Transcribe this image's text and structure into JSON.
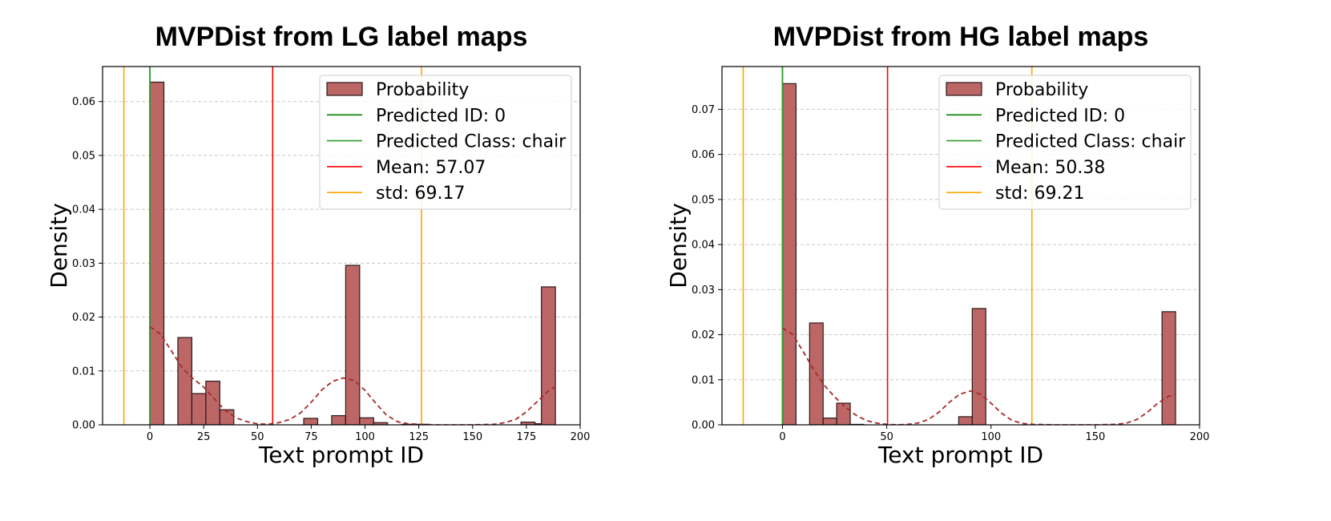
{
  "chart_data": [
    {
      "type": "bar",
      "title": "MVPDist from LG label maps",
      "xlabel": "Text prompt ID",
      "ylabel": "Density",
      "xlim": [
        -22,
        200
      ],
      "ylim": [
        0,
        0.0665
      ],
      "xticks": [
        0,
        25,
        50,
        75,
        100,
        125,
        150,
        175,
        200
      ],
      "yticks": [
        0.0,
        0.01,
        0.02,
        0.03,
        0.04,
        0.05,
        0.06
      ],
      "ytick_labels": [
        "0.00",
        "0.01",
        "0.02",
        "0.03",
        "0.04",
        "0.05",
        "0.06"
      ],
      "grid": "horizontal dashed",
      "legend_position": "top-right",
      "bin_width": 6.5,
      "bars": [
        {
          "x": 0,
          "value": 0.0636
        },
        {
          "x": 13,
          "value": 0.0162
        },
        {
          "x": 19.5,
          "value": 0.0058
        },
        {
          "x": 26,
          "value": 0.0081
        },
        {
          "x": 32.5,
          "value": 0.0028
        },
        {
          "x": 71.5,
          "value": 0.0012
        },
        {
          "x": 84.5,
          "value": 0.0017
        },
        {
          "x": 91,
          "value": 0.0296
        },
        {
          "x": 97.5,
          "value": 0.0013
        },
        {
          "x": 104,
          "value": 0.0004
        },
        {
          "x": 117,
          "value": 0.0001
        },
        {
          "x": 123.5,
          "value": 0.0001
        },
        {
          "x": 172.5,
          "value": 0.0005
        },
        {
          "x": 179,
          "value": 0.0002
        },
        {
          "x": 182,
          "value": 0.0256
        }
      ],
      "kde": {
        "x": [
          0,
          5,
          10,
          15,
          20,
          25,
          30,
          35,
          40,
          45,
          50,
          55,
          60,
          65,
          70,
          75,
          80,
          85,
          90,
          95,
          100,
          105,
          110,
          115,
          120,
          125,
          130,
          140,
          150,
          160,
          165,
          170,
          175,
          180,
          185,
          188
        ],
        "y": [
          0.0182,
          0.0168,
          0.0137,
          0.0106,
          0.0086,
          0.007,
          0.0048,
          0.0027,
          0.0013,
          0.0006,
          0.0002,
          0.0001,
          0.0004,
          0.001,
          0.0022,
          0.0042,
          0.0065,
          0.0081,
          0.0087,
          0.0082,
          0.0064,
          0.004,
          0.0018,
          0.0006,
          0.0002,
          0.0001,
          0.0,
          0.0,
          0.0,
          0.0001,
          0.0004,
          0.001,
          0.0024,
          0.0043,
          0.0062,
          0.007
        ]
      },
      "lines": [
        {
          "x": 0,
          "color": "#008000",
          "label": "Predicted ID: 0"
        },
        {
          "x": 0,
          "color": "#2ca02c",
          "label": "Predicted Class: chair"
        },
        {
          "x": 57.07,
          "color": "#ff0000",
          "label": "Mean: 57.07"
        },
        {
          "x": -12.1,
          "color": "#ffa500",
          "label": "std: 69.17"
        },
        {
          "x": 126.24,
          "color": "#ffa500",
          "label": null
        }
      ],
      "legend": [
        {
          "kind": "patch",
          "label": "Probability",
          "color": "#bc6666"
        },
        {
          "kind": "line",
          "label": "Predicted ID: 0",
          "color": "#008000"
        },
        {
          "kind": "line",
          "label": "Predicted Class: chair",
          "color": "#2ca02c"
        },
        {
          "kind": "line",
          "label": "Mean: 57.07",
          "color": "#ff0000"
        },
        {
          "kind": "line",
          "label": "std: 69.17",
          "color": "#ffa500"
        }
      ]
    },
    {
      "type": "bar",
      "title": "MVPDist from HG label maps",
      "xlabel": "Text prompt ID",
      "ylabel": "Density",
      "xlim": [
        -29,
        200
      ],
      "ylim": [
        0,
        0.0795
      ],
      "xticks": [
        0,
        50,
        100,
        150,
        200
      ],
      "yticks": [
        0.0,
        0.01,
        0.02,
        0.03,
        0.04,
        0.05,
        0.06,
        0.07
      ],
      "ytick_labels": [
        "0.00",
        "0.01",
        "0.02",
        "0.03",
        "0.04",
        "0.05",
        "0.06",
        "0.07"
      ],
      "grid": "horizontal dashed",
      "legend_position": "top-right",
      "bin_width": 6.5,
      "bars": [
        {
          "x": 0,
          "value": 0.0757
        },
        {
          "x": 13,
          "value": 0.0226
        },
        {
          "x": 19.5,
          "value": 0.0015
        },
        {
          "x": 26,
          "value": 0.0048
        },
        {
          "x": 32.5,
          "value": 0.0001
        },
        {
          "x": 84.5,
          "value": 0.0018
        },
        {
          "x": 91,
          "value": 0.0258
        },
        {
          "x": 182,
          "value": 0.0251
        }
      ],
      "kde": {
        "x": [
          0,
          5,
          10,
          15,
          20,
          25,
          30,
          35,
          40,
          45,
          50,
          55,
          60,
          65,
          70,
          75,
          80,
          85,
          90,
          95,
          100,
          105,
          110,
          115,
          120,
          130,
          140,
          150,
          160,
          165,
          170,
          175,
          180,
          185,
          188
        ],
        "y": [
          0.0215,
          0.02,
          0.0162,
          0.0122,
          0.0088,
          0.0062,
          0.004,
          0.0022,
          0.001,
          0.0004,
          0.0001,
          0.0,
          0.0001,
          0.0004,
          0.0012,
          0.0028,
          0.005,
          0.0068,
          0.0075,
          0.0068,
          0.0048,
          0.0026,
          0.001,
          0.0003,
          0.0001,
          0.0,
          0.0,
          0.0,
          0.0001,
          0.0004,
          0.0012,
          0.0028,
          0.0048,
          0.0063,
          0.0067
        ]
      },
      "lines": [
        {
          "x": 0,
          "color": "#008000",
          "label": "Predicted ID: 0"
        },
        {
          "x": 0,
          "color": "#2ca02c",
          "label": "Predicted Class: chair"
        },
        {
          "x": 50.38,
          "color": "#ff0000",
          "label": "Mean: 50.38"
        },
        {
          "x": -18.83,
          "color": "#ffa500",
          "label": "std: 69.21"
        },
        {
          "x": 119.59,
          "color": "#ffa500",
          "label": null
        }
      ],
      "legend": [
        {
          "kind": "patch",
          "label": "Probability",
          "color": "#bc6666"
        },
        {
          "kind": "line",
          "label": "Predicted ID: 0",
          "color": "#008000"
        },
        {
          "kind": "line",
          "label": "Predicted Class: chair",
          "color": "#2ca02c"
        },
        {
          "kind": "line",
          "label": "Mean: 50.38",
          "color": "#ff0000"
        },
        {
          "kind": "line",
          "label": "std: 69.21",
          "color": "#ffa500"
        }
      ]
    }
  ],
  "colors": {
    "bar_fill": "#bc6666",
    "bar_edge": "#2a1a1a",
    "kde_line": "#a52a2a",
    "grid": "#c8c8c8"
  }
}
